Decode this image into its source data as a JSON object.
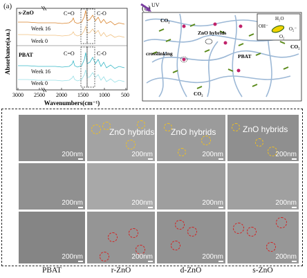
{
  "panel_a": {
    "letter": "(a)",
    "top_label": "s-ZnO",
    "bottom_label": "PBAT",
    "week16": "Week 16",
    "week0": "Week 0",
    "co_label": "C=O",
    "c_o_label": "C-O",
    "ylabel": "Absorbance(a.u.)",
    "xlabel": "Wavenumbers(cm⁻¹)",
    "xticks": [
      "3000",
      "2500",
      "2000",
      "1500",
      "1000",
      "500"
    ]
  },
  "panel_b": {
    "letter": "(b)",
    "uv": "UV",
    "co2": "CO₂",
    "zno_hybrids": "ZnO hybrids",
    "crosslinking": "crosslinking",
    "pbat": "PBAT",
    "h2o": "H₂O",
    "oh": "OH⁻",
    "o2": "O₂",
    "o2minus": "O₂⁻"
  },
  "panel_sem": {
    "row_letters": [
      "(c)",
      "(d)",
      "(e)"
    ],
    "scale": "200nm",
    "hybrids_label": "ZnO hybrids",
    "columns": [
      "PBAT",
      "r-ZnO",
      "d-ZnO",
      "s-ZnO"
    ]
  }
}
